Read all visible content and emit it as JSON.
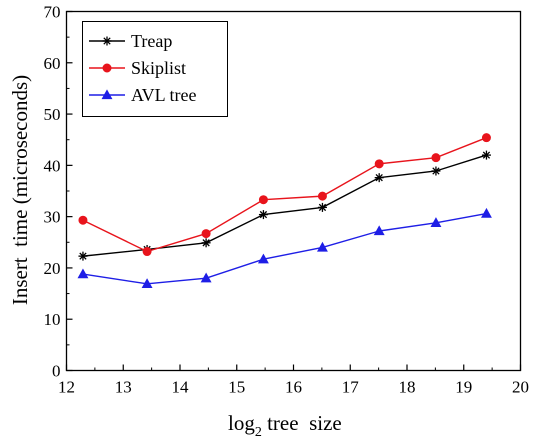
{
  "chart_data": {
    "type": "line",
    "title": "",
    "xlabel_main": "log",
    "xlabel_sub": "2",
    "xlabel_rest": " tree  size",
    "ylabel": "Insert  time (microseconds)",
    "xlim": [
      12,
      20
    ],
    "ylim": [
      0,
      70
    ],
    "xticks": [
      12,
      13,
      14,
      15,
      16,
      17,
      18,
      19,
      20
    ],
    "yticks": [
      0,
      10,
      20,
      30,
      40,
      50,
      60,
      70
    ],
    "grid": false,
    "legend_position": "top-left",
    "x": [
      12.29,
      13.42,
      14.46,
      15.47,
      16.51,
      17.51,
      18.51,
      19.4
    ],
    "series": [
      {
        "name": "Treap",
        "color": "#000000",
        "marker": "asterisk",
        "values": [
          22.3,
          23.6,
          24.9,
          30.4,
          31.8,
          37.6,
          38.9,
          42.0
        ]
      },
      {
        "name": "Skiplist",
        "color": "#e8141c",
        "marker": "circle",
        "values": [
          29.3,
          23.2,
          26.7,
          33.3,
          34.0,
          40.3,
          41.5,
          45.4
        ]
      },
      {
        "name": "AVL tree",
        "color": "#1e1ee6",
        "marker": "triangle",
        "values": [
          18.8,
          16.9,
          18.0,
          21.7,
          24.0,
          27.2,
          28.8,
          30.6
        ]
      }
    ]
  }
}
